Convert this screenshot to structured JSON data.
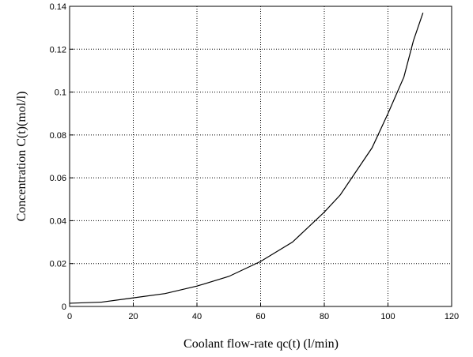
{
  "chart_data": {
    "type": "line",
    "xlabel": "Coolant flow-rate  qc(t)  (l/min)",
    "ylabel": "Concentration  C(t)(mol/l)",
    "x": [
      0,
      10,
      20,
      30,
      40,
      50,
      60,
      70,
      80,
      85,
      90,
      95,
      100,
      105,
      108,
      111
    ],
    "series": [
      {
        "color": "#000000",
        "values": [
          0.0015,
          0.002,
          0.004,
          0.006,
          0.0095,
          0.014,
          0.021,
          0.03,
          0.044,
          0.052,
          0.063,
          0.074,
          0.09,
          0.107,
          0.124,
          0.137
        ]
      }
    ],
    "xlim": [
      0,
      120
    ],
    "xticks": [
      0,
      20,
      40,
      60,
      80,
      100,
      120
    ],
    "ylim": [
      0,
      0.14
    ],
    "yticks": [
      0,
      0.02,
      0.04,
      0.06,
      0.08,
      0.1,
      0.12,
      0.14
    ],
    "grid": true
  }
}
